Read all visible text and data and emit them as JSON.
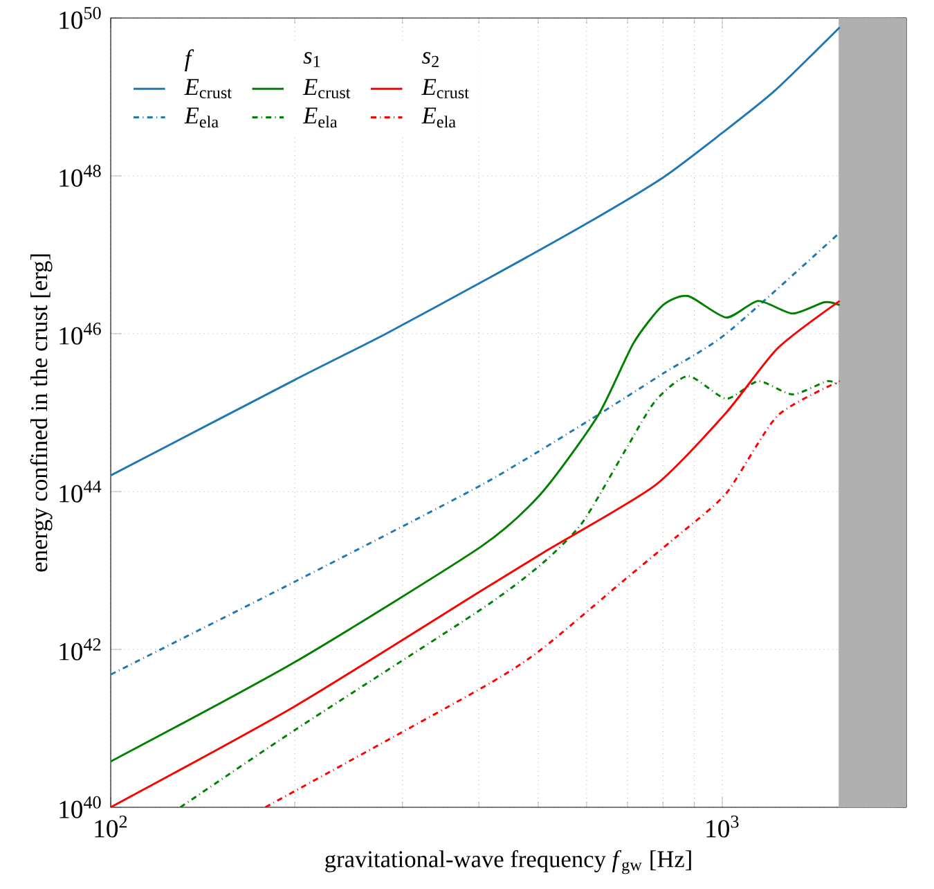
{
  "chart_data": {
    "type": "line",
    "xlabel": "gravitational-wave frequency *f*$_{gw}$ [Hz]",
    "ylabel": "energy confined in the crust [erg]",
    "annotations": [
      "*f*",
      "*s*$_{1}$",
      "*s*$_{2}$"
    ],
    "log": "xy",
    "grid": true,
    "legend": "top left",
    "xlim": [
      100,
      2000
    ],
    "ylim": [
      1e+40,
      1e+50
    ],
    "xticks": [
      {
        "value": 100,
        "label": "10$^{2}$"
      },
      {
        "value": 1000,
        "label": "10$^{3}$"
      }
    ],
    "yticks": [
      {
        "value": 1e+40,
        "label": "10$^{40}$"
      },
      {
        "value": 1e+42,
        "label": "10$^{42}$"
      },
      {
        "value": 1e+44,
        "label": "10$^{44}$"
      },
      {
        "value": 1e+46,
        "label": "10$^{46}$"
      },
      {
        "value": 1e+48,
        "label": "10$^{48}$"
      },
      {
        "value": 1e+50,
        "label": "10$^{50}$"
      }
    ],
    "bands": [
      {
        "axis": "x",
        "from": 1550,
        "to": 2000,
        "color": "#b0b0b0"
      }
    ],
    "series": [
      {
        "name": "*E*$_{crust}$",
        "color": "#1f77b4",
        "line_style": "solid",
        "x": [
          100,
          200,
          282,
          418,
          601,
          800,
          1000,
          1219,
          1556
        ],
        "values": [
          1.6e+44,
          2.6e+45,
          1e+46,
          5.2e+46,
          2.5e+47,
          9.5e+47,
          3.5e+48,
          1.2e+49,
          7.6e+49
        ]
      },
      {
        "name": "*E*$_{ela}$",
        "color": "#1f77b4",
        "line_style": "dashdot",
        "x": [
          100,
          200,
          403,
          614,
          804,
          1015,
          1556
        ],
        "values": [
          4.8e+41,
          7.2e+42,
          1.2e+44,
          8.5e+44,
          3.2e+45,
          1e+46,
          1.9e+47
        ]
      },
      {
        "name": "*E*$_{crust}$",
        "color": "#008000",
        "line_style": "solid",
        "x": [
          100,
          200,
          403,
          506,
          626,
          716,
          800,
          879,
          1015,
          1145,
          1303,
          1469,
          1556
        ],
        "values": [
          3.8e+40,
          6.9e+41,
          2e+43,
          9.5e+43,
          9.1e+44,
          7.6e+45,
          2.3e+46,
          3e+46,
          1.6e+46,
          2.6e+46,
          1.8e+46,
          2.5e+46,
          2.3e+46
        ]
      },
      {
        "name": "*E*$_{ela}$",
        "color": "#008000",
        "line_style": "dashdot",
        "x": [
          130,
          200,
          403,
          506,
          590,
          692,
          777,
          879,
          1015,
          1145,
          1303,
          1485,
          1556
        ],
        "values": [
          1e+40,
          9.5e+40,
          3.2e+42,
          1.2e+43,
          4e+43,
          3.2e+44,
          1.4e+45,
          2.9e+45,
          1.5e+45,
          2.5e+45,
          1.7e+45,
          2.5e+45,
          2.2e+45
        ]
      },
      {
        "name": "*E*$_{crust}$",
        "color": "#ff0000",
        "line_style": "solid",
        "x": [
          100,
          200,
          403,
          517,
          777,
          1015,
          1231,
          1556
        ],
        "values": [
          1e+40,
          1.9e+41,
          5.5e+42,
          1.8e+43,
          1.2e+44,
          1e+45,
          6.5e+45,
          2.6e+46
        ]
      },
      {
        "name": "*E*$_{ela}$",
        "color": "#ff0000",
        "line_style": "dashdot",
        "x": [
          179,
          403,
          506,
          692,
          838,
          1015,
          1231,
          1556
        ],
        "values": [
          1e+40,
          3.2e+41,
          1e+42,
          7.6e+42,
          2.6e+43,
          9.5e+43,
          9.1e+44,
          2.5e+45
        ]
      }
    ]
  }
}
